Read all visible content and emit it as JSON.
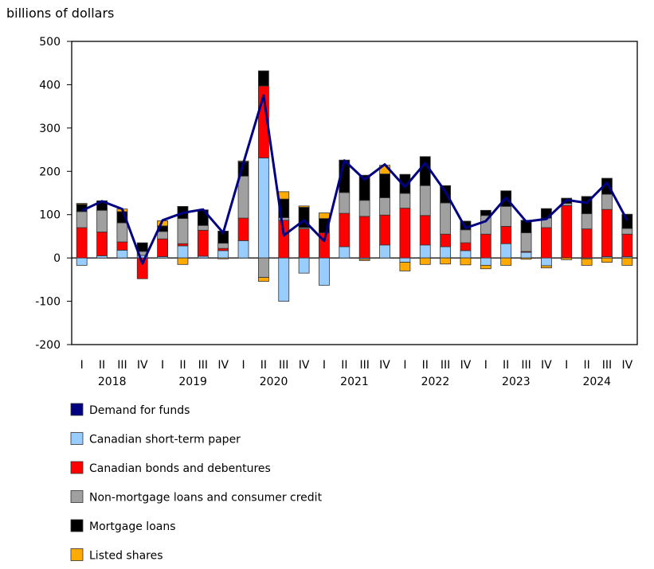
{
  "chart_data": {
    "type": "bar",
    "stacked": true,
    "ylabel": "billions of dollars",
    "ylim": [
      -200,
      500
    ],
    "yticks": [
      -200,
      -100,
      0,
      100,
      200,
      300,
      400,
      500
    ],
    "grid": false,
    "legend_placement": "bottom",
    "quarter_labels": [
      "I",
      "II",
      "III",
      "IV",
      "I",
      "II",
      "III",
      "IV",
      "I",
      "II",
      "III",
      "IV",
      "I",
      "II",
      "III",
      "IV",
      "I",
      "II",
      "III",
      "IV",
      "I",
      "II",
      "III",
      "IV",
      "I",
      "II",
      "III",
      "IV"
    ],
    "years": [
      "2018",
      "2019",
      "2020",
      "2021",
      "2022",
      "2023",
      "2024"
    ],
    "series": [
      {
        "name": "Canadian short-term paper",
        "color": "#99ccff",
        "values": [
          -17,
          5,
          18,
          6,
          3,
          28,
          4,
          17,
          40,
          231,
          -100,
          -35,
          -63,
          26,
          -3,
          30,
          -10,
          30,
          26,
          17,
          -17,
          33,
          13,
          -18,
          0,
          -2,
          3,
          3
        ]
      },
      {
        "name": "Canadian bonds and debentures",
        "color": "#ff0000",
        "values": [
          70,
          55,
          19,
          -48,
          41,
          5,
          60,
          5,
          52,
          166,
          87,
          67,
          58,
          77,
          96,
          69,
          115,
          68,
          29,
          18,
          55,
          40,
          2,
          70,
          121,
          67,
          109,
          52
        ]
      },
      {
        "name": "Non-mortgage loans and consumer credit",
        "color": "#a0a0a0",
        "values": [
          37,
          50,
          44,
          9,
          17,
          58,
          11,
          12,
          97,
          -45,
          6,
          3,
          0,
          48,
          37,
          40,
          34,
          69,
          72,
          30,
          43,
          46,
          43,
          22,
          5,
          35,
          35,
          13
        ]
      },
      {
        "name": "Mortgage loans",
        "color": "#000000",
        "values": [
          17,
          22,
          26,
          20,
          13,
          28,
          36,
          28,
          33,
          35,
          43,
          47,
          33,
          75,
          58,
          55,
          44,
          67,
          40,
          20,
          12,
          36,
          29,
          22,
          12,
          40,
          37,
          33
        ]
      },
      {
        "name": "Listed shares",
        "color": "#ffaa00",
        "values": [
          2,
          0,
          6,
          0,
          12,
          -15,
          0,
          -2,
          2,
          -9,
          17,
          3,
          13,
          0,
          -3,
          20,
          -20,
          -15,
          -14,
          -16,
          -8,
          -17,
          -3,
          -5,
          -4,
          -15,
          -10,
          -17
        ]
      }
    ],
    "line": {
      "name": "Demand for funds",
      "color": "#000080",
      "values": [
        109,
        131,
        113,
        -13,
        87,
        104,
        112,
        58,
        219,
        375,
        52,
        87,
        39,
        225,
        181,
        216,
        164,
        219,
        153,
        69,
        85,
        139,
        84,
        90,
        134,
        127,
        174,
        87
      ]
    }
  }
}
